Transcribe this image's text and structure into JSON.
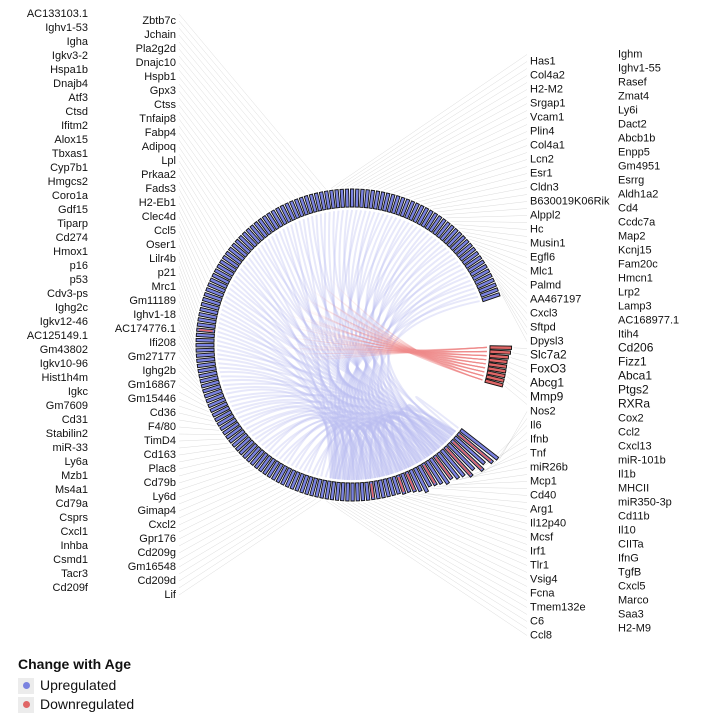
{
  "chart_data": {
    "type": "chord",
    "legend": {
      "title": "Change with Age",
      "placement": "bottom-left",
      "items": [
        {
          "label": "Upregulated",
          "color": "#7b83e0"
        },
        {
          "label": "Downregulated",
          "color": "#e06666"
        }
      ]
    },
    "colors": {
      "up": "#7b83e0",
      "down": "#e06666",
      "chord_up": "#b9bdf0",
      "chord_down": "#f0a8a8",
      "bar_stroke": "#111111"
    },
    "upregulated": [
      {
        "g": "Nos2",
        "v": 2.6
      },
      {
        "g": "Cox2",
        "v": 2.5,
        "mixed": true
      },
      {
        "g": "Il6",
        "v": 2.2
      },
      {
        "g": "Ccl2",
        "v": 2.4,
        "mixed": true
      },
      {
        "g": "Ifnb",
        "v": 2.0
      },
      {
        "g": "Cxcl13",
        "v": 2.2,
        "mixed": true
      },
      {
        "g": "Tnf",
        "v": 1.9
      },
      {
        "g": "miR-101b",
        "v": 1.8
      },
      {
        "g": "miR26b",
        "v": 1.6,
        "mixed": true
      },
      {
        "g": "Il1b",
        "v": 1.7
      },
      {
        "g": "Mcp1",
        "v": 1.5
      },
      {
        "g": "MHCII",
        "v": 1.4,
        "mixed": true
      },
      {
        "g": "Cd40",
        "v": 1.3
      },
      {
        "g": "miR350-3p",
        "v": 1.5
      },
      {
        "g": "Arg1",
        "v": 1.3
      },
      {
        "g": "Cd11b",
        "v": 1.2,
        "mixed": true
      },
      {
        "g": "Il12p40",
        "v": 1.1
      },
      {
        "g": "Il10",
        "v": 1.1,
        "mixed": true
      },
      {
        "g": "Mcsf",
        "v": 1
      },
      {
        "g": "CIITa",
        "v": 1
      },
      {
        "g": "Irf1",
        "v": 1
      },
      {
        "g": "IfnG",
        "v": 1
      },
      {
        "g": "Tlr1",
        "v": 1
      },
      {
        "g": "TgfB",
        "v": 1,
        "mixed": true
      },
      {
        "g": "Vsig4",
        "v": 1
      },
      {
        "g": "Cxcl5",
        "v": 1
      },
      {
        "g": "Fcna",
        "v": 1
      },
      {
        "g": "Marco",
        "v": 1
      },
      {
        "g": "Tmem132e",
        "v": 1
      },
      {
        "g": "Saa3",
        "v": 1
      },
      {
        "g": "C6",
        "v": 1
      },
      {
        "g": "H2-M9",
        "v": 1
      },
      {
        "g": "Ccl8",
        "v": 1
      },
      {
        "g": "Lif",
        "v": 1
      },
      {
        "g": "Cd209f",
        "v": 1
      },
      {
        "g": "Cd209d",
        "v": 1
      },
      {
        "g": "Tacr3",
        "v": 1
      },
      {
        "g": "Gm16548",
        "v": 1
      },
      {
        "g": "Csmd1",
        "v": 1
      },
      {
        "g": "Cd209g",
        "v": 1
      },
      {
        "g": "Inhba",
        "v": 1
      },
      {
        "g": "Gpr176",
        "v": 1
      },
      {
        "g": "Cxcl1",
        "v": 1
      },
      {
        "g": "Cxcl2",
        "v": 1
      },
      {
        "g": "Csprs",
        "v": 1
      },
      {
        "g": "Gimap4",
        "v": 1
      },
      {
        "g": "Cd79a",
        "v": 1
      },
      {
        "g": "Ly6d",
        "v": 1
      },
      {
        "g": "Ms4a1",
        "v": 1
      },
      {
        "g": "Cd79b",
        "v": 1
      },
      {
        "g": "Mzb1",
        "v": 1
      },
      {
        "g": "Plac8",
        "v": 1
      },
      {
        "g": "Ly6a",
        "v": 1
      },
      {
        "g": "Cd163",
        "v": 1
      },
      {
        "g": "miR-33",
        "v": 1
      },
      {
        "g": "TimD4",
        "v": 1
      },
      {
        "g": "Stabilin2",
        "v": 1
      },
      {
        "g": "F4/80",
        "v": 1
      },
      {
        "g": "Cd31",
        "v": 1
      },
      {
        "g": "Cd36",
        "v": 1
      },
      {
        "g": "Gm7609",
        "v": 1
      },
      {
        "g": "Gm15446",
        "v": 1
      },
      {
        "g": "Igkc",
        "v": 1
      },
      {
        "g": "Gm16867",
        "v": 1
      },
      {
        "g": "Hist1h4m",
        "v": 1
      },
      {
        "g": "Ighg2b",
        "v": 1
      },
      {
        "g": "Igkv10-96",
        "v": 1
      },
      {
        "g": "Gm27177",
        "v": 1
      },
      {
        "g": "Gm43802",
        "v": 1
      },
      {
        "g": "Ifi208",
        "v": 1
      },
      {
        "g": "AC125149.1",
        "v": 1
      },
      {
        "g": "AC174776.1",
        "v": 1
      },
      {
        "g": "Igkv12-46",
        "v": 1
      },
      {
        "g": "Ighv1-18",
        "v": 1
      },
      {
        "g": "Ighg2c",
        "v": 1
      },
      {
        "g": "Gm11189",
        "v": 1
      },
      {
        "g": "Cdv3-ps",
        "v": 1
      },
      {
        "g": "Mrc1",
        "v": 1,
        "mixed": true
      },
      {
        "g": "p53",
        "v": 1
      },
      {
        "g": "p21",
        "v": 1
      },
      {
        "g": "p16",
        "v": 1
      },
      {
        "g": "Lilr4b",
        "v": 1
      },
      {
        "g": "Hmox1",
        "v": 1
      },
      {
        "g": "Oser1",
        "v": 1
      },
      {
        "g": "Cd274",
        "v": 1
      },
      {
        "g": "Ccl5",
        "v": 1
      },
      {
        "g": "Tiparp",
        "v": 1
      },
      {
        "g": "Clec4d",
        "v": 1
      },
      {
        "g": "Gdf15",
        "v": 1
      },
      {
        "g": "H2-Eb1",
        "v": 1
      },
      {
        "g": "Coro1a",
        "v": 1
      },
      {
        "g": "Fads3",
        "v": 1
      },
      {
        "g": "Hmgcs2",
        "v": 1
      },
      {
        "g": "Prkaa2",
        "v": 1
      },
      {
        "g": "Cyp7b1",
        "v": 1
      },
      {
        "g": "Lpl",
        "v": 1
      },
      {
        "g": "Tbxas1",
        "v": 1
      },
      {
        "g": "Adipoq",
        "v": 1
      },
      {
        "g": "Alox15",
        "v": 1
      },
      {
        "g": "Fabp4",
        "v": 1
      },
      {
        "g": "Ifitm2",
        "v": 1
      },
      {
        "g": "Tnfaip8",
        "v": 1
      },
      {
        "g": "Ctsd",
        "v": 1
      },
      {
        "g": "Ctss",
        "v": 1
      },
      {
        "g": "Atf3",
        "v": 1
      },
      {
        "g": "Gpx3",
        "v": 1
      },
      {
        "g": "Dnajb4",
        "v": 1
      },
      {
        "g": "Hspb1",
        "v": 1
      },
      {
        "g": "Hspa1b",
        "v": 1
      },
      {
        "g": "Dnajc10",
        "v": 1
      },
      {
        "g": "Igkv3-2",
        "v": 1
      },
      {
        "g": "Pla2g2d",
        "v": 1
      },
      {
        "g": "Igha",
        "v": 1
      },
      {
        "g": "Jchain",
        "v": 1
      },
      {
        "g": "Ighv1-53",
        "v": 1
      },
      {
        "g": "Zbtb7c",
        "v": 1
      },
      {
        "g": "AC133103.1",
        "v": 1
      },
      {
        "g": "Ighm",
        "v": 1
      },
      {
        "g": "Has1",
        "v": 1
      },
      {
        "g": "Ighv1-55",
        "v": 1
      },
      {
        "g": "Col4a2",
        "v": 1
      },
      {
        "g": "Rasef",
        "v": 1
      },
      {
        "g": "H2-M2",
        "v": 1
      },
      {
        "g": "Zmat4",
        "v": 1
      },
      {
        "g": "Srgap1",
        "v": 1
      },
      {
        "g": "Ly6i",
        "v": 1
      },
      {
        "g": "Vcam1",
        "v": 1
      },
      {
        "g": "Dact2",
        "v": 1
      },
      {
        "g": "Plin4",
        "v": 1
      },
      {
        "g": "Abcb1b",
        "v": 1
      },
      {
        "g": "Col4a1",
        "v": 1
      },
      {
        "g": "Enpp5",
        "v": 1
      },
      {
        "g": "Lcn2",
        "v": 1
      },
      {
        "g": "Gm4951",
        "v": 1
      },
      {
        "g": "Esr1",
        "v": 1
      },
      {
        "g": "Esrrg",
        "v": 1
      },
      {
        "g": "Cldn3",
        "v": 1
      },
      {
        "g": "Aldh1a2",
        "v": 1
      },
      {
        "g": "B630019K06Rik",
        "v": 1
      },
      {
        "g": "Cd4",
        "v": 1
      },
      {
        "g": "Alppl2",
        "v": 1
      },
      {
        "g": "Ccdc7a",
        "v": 1
      },
      {
        "g": "Hc",
        "v": 1
      },
      {
        "g": "Map2",
        "v": 1
      },
      {
        "g": "Musin1",
        "v": 1
      },
      {
        "g": "Kcnj15",
        "v": 1
      },
      {
        "g": "Egfl6",
        "v": 1
      },
      {
        "g": "Fam20c",
        "v": 1
      },
      {
        "g": "Mlc1",
        "v": 1
      },
      {
        "g": "Hmcn1",
        "v": 1
      },
      {
        "g": "Palmd",
        "v": 1
      },
      {
        "g": "Lrp2",
        "v": 1
      },
      {
        "g": "AA467197",
        "v": 1
      },
      {
        "g": "Lamp3",
        "v": 1
      },
      {
        "g": "Cxcl3",
        "v": 1
      },
      {
        "g": "AC168977.1",
        "v": 1
      },
      {
        "g": "Sftpd",
        "v": 1
      },
      {
        "g": "Itih4",
        "v": 1
      },
      {
        "g": "Dpysl3",
        "v": 1
      }
    ],
    "downregulated": [
      {
        "g": "Cd206",
        "v": 1.2
      },
      {
        "g": "Slc7a2",
        "v": 1.15
      },
      {
        "g": "Fizz1",
        "v": 1.05
      },
      {
        "g": "FoxO3",
        "v": 1
      },
      {
        "g": "Abca1",
        "v": 1
      },
      {
        "g": "Abcg1",
        "v": 1
      },
      {
        "g": "Ptgs2",
        "v": 1
      },
      {
        "g": "Mmp9",
        "v": 1
      },
      {
        "g": "RXRa",
        "v": 1
      }
    ]
  }
}
